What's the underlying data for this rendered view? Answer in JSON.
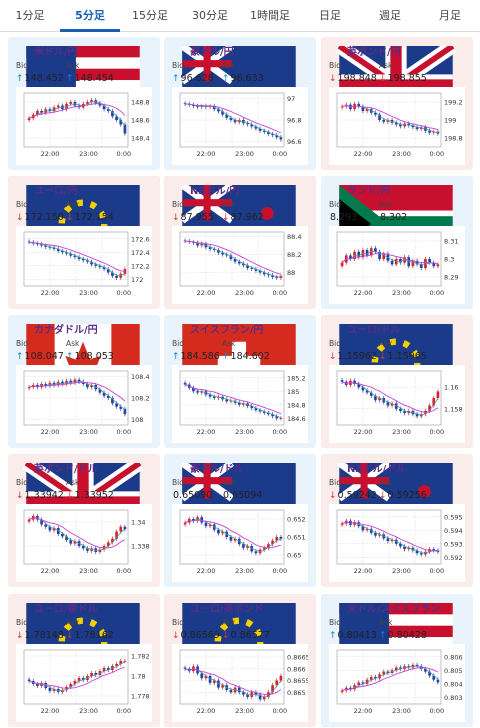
{
  "tabs": [
    {
      "label": "1分足",
      "active": false
    },
    {
      "label": "5分足",
      "active": true
    },
    {
      "label": "15分足",
      "active": false
    },
    {
      "label": "30分足",
      "active": false
    },
    {
      "label": "1時間足",
      "active": false
    },
    {
      "label": "日足",
      "active": false
    },
    {
      "label": "週足",
      "active": false
    },
    {
      "label": "月足",
      "active": false
    }
  ],
  "bid_label": "Bid",
  "ask_label": "Ask",
  "colors": {
    "up_bg": "#e9f3fb",
    "down_bg": "#fbecec",
    "up_arrow": "#1f7fc4",
    "down_arrow": "#d23a3a",
    "name": "#5a2c86",
    "candle_up": "#d8232a",
    "candle_down": "#2a3fa3",
    "ma_line": "#c940d8"
  },
  "cards": [
    {
      "name": "米ドル/円",
      "flag": "us",
      "dir": "up",
      "bid": "148.452",
      "ask": "148.454",
      "bid_arrow": "↑",
      "ask_arrow": "↑",
      "x_labels": [
        "22:00",
        "23:00",
        "0:00"
      ],
      "y_labels": [
        "148.8",
        "148.6",
        "148.4"
      ],
      "ymin": 148.3,
      "ymax": 148.9,
      "closes": [
        148.62,
        148.66,
        148.7,
        148.68,
        148.72,
        148.7,
        148.74,
        148.76,
        148.72,
        148.78,
        148.8,
        148.76,
        148.74,
        148.78,
        148.8,
        148.82,
        148.79,
        148.76,
        148.72,
        148.7,
        148.64,
        148.6,
        148.55,
        148.45
      ]
    },
    {
      "name": "豪ドル/円",
      "flag": "au",
      "dir": "up",
      "bid": "96.628",
      "ask": "96.633",
      "bid_arrow": "↑",
      "ask_arrow": "↑",
      "x_labels": [
        "22:00",
        "23:00",
        "0:00"
      ],
      "y_labels": [
        "97",
        "96.8",
        "96.6"
      ],
      "ymin": 96.55,
      "ymax": 97.05,
      "closes": [
        96.95,
        96.94,
        96.93,
        96.92,
        96.93,
        96.92,
        96.93,
        96.9,
        96.88,
        96.85,
        96.82,
        96.8,
        96.78,
        96.8,
        96.77,
        96.76,
        96.74,
        96.72,
        96.7,
        96.69,
        96.67,
        96.66,
        96.64,
        96.62
      ]
    },
    {
      "name": "英ポンド/円",
      "flag": "gb",
      "dir": "down",
      "bid": "198.848",
      "ask": "198.855",
      "bid_arrow": "↓",
      "ask_arrow": "↓",
      "x_labels": [
        "22:00",
        "23:00",
        "0:00"
      ],
      "y_labels": [
        "199.2",
        "199",
        "198.8"
      ],
      "ymin": 198.7,
      "ymax": 199.3,
      "closes": [
        199.15,
        199.17,
        199.12,
        199.18,
        199.15,
        199.1,
        199.12,
        199.08,
        199.06,
        199.0,
        198.98,
        199.0,
        198.97,
        198.95,
        198.93,
        198.96,
        198.94,
        198.92,
        198.9,
        198.92,
        198.88,
        198.86,
        198.87,
        198.85
      ]
    },
    {
      "name": "ユーロ/円",
      "flag": "eu",
      "dir": "down",
      "bid": "172.150",
      "ask": "172.154",
      "bid_arrow": "↓",
      "ask_arrow": "↓",
      "x_labels": [
        "22:00",
        "23:00",
        "0:00"
      ],
      "y_labels": [
        "172.6",
        "172.4",
        "172.2",
        "172"
      ],
      "ymin": 171.9,
      "ymax": 172.7,
      "closes": [
        172.55,
        172.53,
        172.52,
        172.5,
        172.48,
        172.47,
        172.45,
        172.42,
        172.4,
        172.38,
        172.35,
        172.33,
        172.3,
        172.28,
        172.26,
        172.22,
        172.2,
        172.18,
        172.15,
        172.1,
        172.05,
        172.02,
        172.08,
        172.15
      ]
    },
    {
      "name": "NZドル/円",
      "flag": "nz",
      "dir": "down",
      "bid": "87.955",
      "ask": "87.962",
      "bid_arrow": "↓",
      "ask_arrow": "↓",
      "x_labels": [
        "22:00",
        "23:00",
        "0:00"
      ],
      "y_labels": [
        "88.4",
        "88.2",
        "88"
      ],
      "ymin": 87.85,
      "ymax": 88.45,
      "closes": [
        88.35,
        88.34,
        88.33,
        88.3,
        88.32,
        88.28,
        88.26,
        88.25,
        88.22,
        88.2,
        88.19,
        88.15,
        88.12,
        88.1,
        88.08,
        88.05,
        88.04,
        88.02,
        88.0,
        87.98,
        87.97,
        87.95,
        87.94,
        87.96
      ]
    },
    {
      "name": "ランド/円",
      "flag": "za",
      "dir": "up",
      "bid": "8.293",
      "ask": "8.302",
      "bid_arrow": "",
      "ask_arrow": "",
      "x_labels": [
        "22:00",
        "23:00",
        "0:00"
      ],
      "y_labels": [
        "8.31",
        "8.3",
        "8.29"
      ],
      "ymin": 8.285,
      "ymax": 8.315,
      "closes": [
        8.298,
        8.302,
        8.3,
        8.304,
        8.301,
        8.305,
        8.302,
        8.306,
        8.304,
        8.3,
        8.303,
        8.299,
        8.297,
        8.3,
        8.298,
        8.301,
        8.296,
        8.299,
        8.297,
        8.295,
        8.3,
        8.298,
        8.296,
        8.297
      ]
    },
    {
      "name": "カナダドル/円",
      "flag": "ca",
      "dir": "up",
      "bid": "108.047",
      "ask": "108.053",
      "bid_arrow": "↑",
      "ask_arrow": "↑",
      "x_labels": [
        "22:00",
        "23:00",
        "0:00"
      ],
      "y_labels": [
        "108.4",
        "108.2",
        "108"
      ],
      "ymin": 107.95,
      "ymax": 108.45,
      "closes": [
        108.3,
        108.32,
        108.3,
        108.33,
        108.31,
        108.34,
        108.32,
        108.35,
        108.33,
        108.36,
        108.34,
        108.37,
        108.35,
        108.33,
        108.3,
        108.32,
        108.28,
        108.25,
        108.22,
        108.2,
        108.15,
        108.12,
        108.1,
        108.05
      ]
    },
    {
      "name": "スイスフラン/円",
      "flag": "ch",
      "dir": "up",
      "bid": "184.586",
      "ask": "184.602",
      "bid_arrow": "↑",
      "ask_arrow": "↑",
      "x_labels": [
        "22:00",
        "23:00",
        "0:00"
      ],
      "y_labels": [
        "185.2",
        "185",
        "184.8",
        "184.6"
      ],
      "ymin": 184.5,
      "ymax": 185.3,
      "closes": [
        185.1,
        185.05,
        185.0,
        184.98,
        185.0,
        184.95,
        184.92,
        184.9,
        184.92,
        184.88,
        184.85,
        184.86,
        184.83,
        184.8,
        184.82,
        184.78,
        184.75,
        184.72,
        184.7,
        184.68,
        184.66,
        184.63,
        184.6,
        184.6
      ]
    },
    {
      "name": "ユーロ/ドル",
      "flag": "eu-us",
      "dir": "down",
      "bid": "1.15962",
      "ask": "1.15965",
      "bid_arrow": "↓",
      "ask_arrow": "↓",
      "x_labels": [
        "22:00",
        "23:00",
        "0:00"
      ],
      "y_labels": [
        "1.16",
        "1.158"
      ],
      "ymin": 1.1565,
      "ymax": 1.1615,
      "closes": [
        1.1605,
        1.1602,
        1.1606,
        1.1603,
        1.16,
        1.1597,
        1.1595,
        1.1592,
        1.1588,
        1.159,
        1.1586,
        1.1583,
        1.1585,
        1.158,
        1.1578,
        1.1576,
        1.1578,
        1.1575,
        1.1573,
        1.1575,
        1.1578,
        1.1583,
        1.159,
        1.1596
      ]
    },
    {
      "name": "英ポンド/ドル",
      "flag": "gb-us",
      "dir": "down",
      "bid": "1.33942",
      "ask": "1.33952",
      "bid_arrow": "↓",
      "ask_arrow": "↓",
      "x_labels": [
        "22:00",
        "23:00",
        "0:00"
      ],
      "y_labels": [
        "1.34",
        "1.338"
      ],
      "ymin": 1.3365,
      "ymax": 1.341,
      "closes": [
        1.3402,
        1.3405,
        1.3402,
        1.3398,
        1.3396,
        1.3393,
        1.3395,
        1.339,
        1.3388,
        1.3385,
        1.3382,
        1.3384,
        1.338,
        1.3378,
        1.3376,
        1.3378,
        1.3375,
        1.3377,
        1.338,
        1.3383,
        1.3386,
        1.3392,
        1.3396,
        1.3394
      ]
    },
    {
      "name": "豪ドル/ドル",
      "flag": "au-us",
      "dir": "up",
      "bid": "0.65090",
      "ask": "0.65094",
      "bid_arrow": "",
      "ask_arrow": "",
      "x_labels": [
        "22:00",
        "23:00",
        "0:00"
      ],
      "y_labels": [
        "0.652",
        "0.651",
        "0.65"
      ],
      "ymin": 0.6495,
      "ymax": 0.6525,
      "closes": [
        0.6518,
        0.652,
        0.6519,
        0.6521,
        0.6518,
        0.6516,
        0.6517,
        0.6514,
        0.6512,
        0.6513,
        0.651,
        0.6508,
        0.6509,
        0.6506,
        0.6504,
        0.6505,
        0.6502,
        0.6501,
        0.6503,
        0.6504,
        0.6506,
        0.6508,
        0.651,
        0.6509
      ]
    },
    {
      "name": "NZドル/ドル",
      "flag": "nz-us",
      "dir": "down",
      "bid": "0.59242",
      "ask": "0.59256",
      "bid_arrow": "↓",
      "ask_arrow": "↓",
      "x_labels": [
        "22:00",
        "23:00",
        "0:00"
      ],
      "y_labels": [
        "0.595",
        "0.594",
        "0.593",
        "0.592"
      ],
      "ymin": 0.5915,
      "ymax": 0.5955,
      "closes": [
        0.5945,
        0.5947,
        0.5944,
        0.5946,
        0.5943,
        0.594,
        0.5941,
        0.5938,
        0.5936,
        0.5937,
        0.5934,
        0.5932,
        0.5933,
        0.593,
        0.5928,
        0.5926,
        0.5927,
        0.5925,
        0.5923,
        0.5922,
        0.5924,
        0.5926,
        0.5925,
        0.5924
      ]
    },
    {
      "name": "ユーロ/豪ドル",
      "flag": "eu-au",
      "dir": "down",
      "bid": "1.78148",
      "ask": "1.78162",
      "bid_arrow": "↓",
      "ask_arrow": "↓",
      "x_labels": [
        "22:00",
        "23:00",
        "0:00"
      ],
      "y_labels": [
        "1.782",
        "1.78",
        "1.778"
      ],
      "ymin": 1.7772,
      "ymax": 1.7826,
      "closes": [
        1.7795,
        1.7792,
        1.779,
        1.7793,
        1.7788,
        1.7785,
        1.7787,
        1.7784,
        1.7786,
        1.7789,
        1.7792,
        1.7795,
        1.7798,
        1.7796,
        1.78,
        1.7803,
        1.7801,
        1.7805,
        1.7808,
        1.7806,
        1.781,
        1.7812,
        1.7815,
        1.7815
      ]
    },
    {
      "name": "ユーロ/英ポンド",
      "flag": "eu-gb",
      "dir": "down",
      "bid": "0.86569",
      "ask": "0.86577",
      "bid_arrow": "↓",
      "ask_arrow": "↓",
      "x_labels": [
        "22:00",
        "23:00",
        "0:00"
      ],
      "y_labels": [
        "0.8665",
        "0.866",
        "0.8655",
        "0.865"
      ],
      "ymin": 0.8645,
      "ymax": 0.8668,
      "closes": [
        0.866,
        0.8659,
        0.8661,
        0.8658,
        0.8656,
        0.8657,
        0.8654,
        0.8655,
        0.8652,
        0.8653,
        0.8651,
        0.865,
        0.8652,
        0.865,
        0.8649,
        0.8648,
        0.865,
        0.8649,
        0.8647,
        0.8648,
        0.865,
        0.8653,
        0.8655,
        0.8657
      ]
    },
    {
      "name": "米ドル/スイスフラン",
      "flag": "us-ch",
      "dir": "up",
      "bid": "0.80413",
      "ask": "0.80428",
      "bid_arrow": "↑",
      "ask_arrow": "↑",
      "x_labels": [
        "22:00",
        "23:00",
        "0:00"
      ],
      "y_labels": [
        "0.806",
        "0.805",
        "0.804",
        "0.803"
      ],
      "ymin": 0.8025,
      "ymax": 0.8065,
      "closes": [
        0.8035,
        0.8037,
        0.8036,
        0.8039,
        0.8041,
        0.804,
        0.8043,
        0.8045,
        0.8044,
        0.8047,
        0.8049,
        0.8048,
        0.805,
        0.8052,
        0.8051,
        0.8053,
        0.8052,
        0.8054,
        0.8053,
        0.8051,
        0.8049,
        0.8046,
        0.8043,
        0.8041
      ]
    }
  ]
}
